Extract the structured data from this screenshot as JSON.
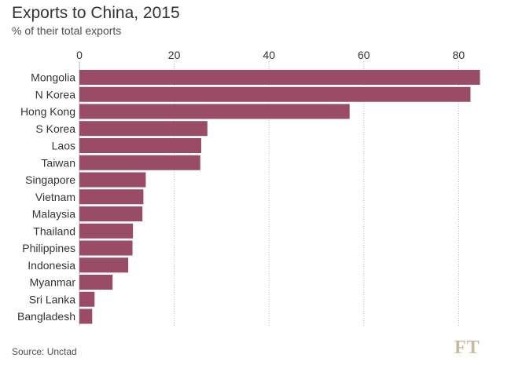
{
  "header": {
    "title": "Exports to China, 2015",
    "subtitle": "% of their total exports"
  },
  "footer": {
    "source": "Source: Unctad",
    "logo": "FT"
  },
  "colors": {
    "bar": "#9a4b66",
    "logo": "#c9b99d"
  },
  "chart_data": {
    "type": "bar",
    "orientation": "horizontal",
    "title": "Exports to China, 2015",
    "subtitle": "% of their total exports",
    "xlabel": "",
    "ylabel": "",
    "categories": [
      "Mongolia",
      "N Korea",
      "Hong Kong",
      "S Korea",
      "Laos",
      "Taiwan",
      "Singapore",
      "Vietnam",
      "Malaysia",
      "Thailand",
      "Philippines",
      "Indonesia",
      "Myanmar",
      "Sri Lanka",
      "Bangladesh"
    ],
    "values": [
      84.5,
      82.5,
      57,
      27,
      25.7,
      25.5,
      14,
      13.5,
      13.3,
      11.3,
      11.2,
      10.3,
      7,
      3.2,
      2.7
    ],
    "xlim": [
      0,
      85
    ],
    "ticks": [
      0,
      20,
      40,
      60,
      80
    ],
    "grid": "vertical dotted",
    "legend": "none"
  }
}
